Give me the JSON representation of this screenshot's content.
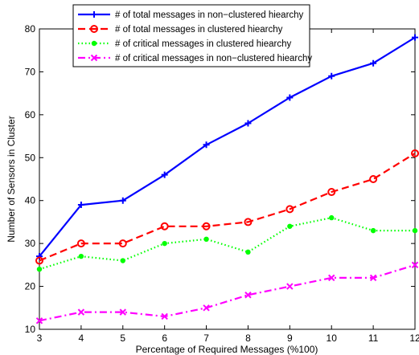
{
  "chart_data": {
    "type": "line",
    "title": "",
    "xlabel": "Percentage of Required Messages (%100)",
    "ylabel": "Number of Sensors in Cluster",
    "xlim": [
      3,
      12
    ],
    "ylim": [
      10,
      80
    ],
    "xticks": [
      3,
      4,
      5,
      6,
      7,
      8,
      9,
      10,
      11,
      12
    ],
    "yticks": [
      10,
      20,
      30,
      40,
      50,
      60,
      70,
      80
    ],
    "grid": false,
    "legend_position": "top-left",
    "x": [
      3,
      4,
      5,
      6,
      7,
      8,
      9,
      10,
      11,
      12
    ],
    "series": [
      {
        "name": "# of total messages in non−clustered hiearchy",
        "values": [
          27,
          39,
          40,
          46,
          53,
          58,
          64,
          69,
          72,
          78
        ],
        "color": "#0000ff",
        "line_style": "solid",
        "marker": "plus"
      },
      {
        "name": "# of total messages in clustered hiearchy",
        "values": [
          26,
          30,
          30,
          34,
          34,
          35,
          38,
          42,
          45,
          51
        ],
        "color": "#ff0000",
        "line_style": "dashed",
        "marker": "circle"
      },
      {
        "name": "# of critical messages in clustered hiearchy",
        "values": [
          24,
          27,
          26,
          30,
          31,
          28,
          34,
          36,
          33,
          33
        ],
        "color": "#00ff00",
        "line_style": "dotted",
        "marker": "dot"
      },
      {
        "name": "# of critical messages in non−clustered hiearchy",
        "values": [
          12,
          14,
          14,
          13,
          15,
          18,
          20,
          22,
          22,
          25
        ],
        "color": "#ff00ff",
        "line_style": "dashdot",
        "marker": "x"
      }
    ]
  }
}
